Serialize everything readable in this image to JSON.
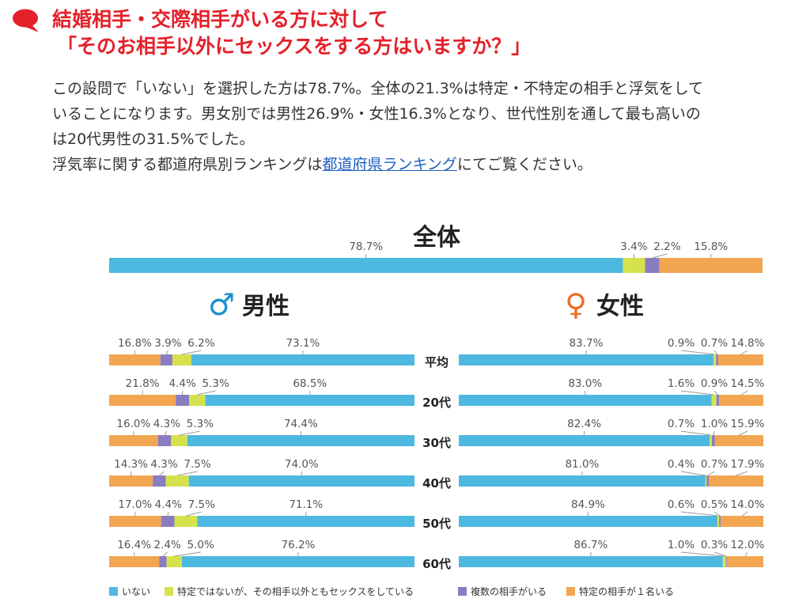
{
  "heading": {
    "line1": "結婚相手・交際相手がいる方に対して",
    "line2": "「そのお相手以外にセックスをする方はいますか？」"
  },
  "intro": {
    "line1": "この設問で「いない」を選択した方は78.7%。全体の21.3%は特定・不特定の相手と浮気をして",
    "line2": "いることになります。男女別では男性26.9%・女性16.3%となり、世代性別を通して最も高いの",
    "line3": "は20代男性の31.5%でした。",
    "line4_before": "浮気率に関する都道府県別ランキングは",
    "line4_link": "都道府県ランキング",
    "line4_after": "にてご覧ください。"
  },
  "colors": {
    "none": "#4db8e0",
    "unspecified": "#d6e24c",
    "multiple": "#8a7cc0",
    "specific": "#f2a652",
    "male": "#1a8fd0",
    "female": "#ec6d24",
    "heading": "#e4202a"
  },
  "chart_data": {
    "type": "bar",
    "stacked": true,
    "unit": "%",
    "categories_label": "全体",
    "legend": [
      {
        "key": "none",
        "label": "いない"
      },
      {
        "key": "unspecified",
        "label": "特定ではないが、その相手以外ともセックスをしている"
      },
      {
        "key": "multiple",
        "label": "複数の相手がいる"
      },
      {
        "key": "specific",
        "label": "特定の相手が１名いる"
      }
    ],
    "overall": {
      "title": "全体",
      "values": {
        "none": 78.7,
        "unspecified": 3.4,
        "multiple": 2.2,
        "specific": 15.8
      },
      "labels": {
        "none": "78.7%",
        "unspecified": "3.4%",
        "multiple": "2.2%",
        "specific": "15.8%"
      }
    },
    "male": {
      "symbol": "♂",
      "title": "男性",
      "rows": [
        {
          "values": {
            "none": 73.1,
            "unspecified": 6.2,
            "multiple": 3.9,
            "specific": 16.8
          },
          "labels": {
            "none": "73.1%",
            "unspecified": "6.2%",
            "multiple": "3.9%",
            "specific": "16.8%"
          }
        },
        {
          "values": {
            "none": 68.5,
            "unspecified": 5.3,
            "multiple": 4.4,
            "specific": 21.8
          },
          "labels": {
            "none": "68.5%",
            "unspecified": "5.3%",
            "multiple": "4.4%",
            "specific": "21.8%"
          }
        },
        {
          "values": {
            "none": 74.4,
            "unspecified": 5.3,
            "multiple": 4.3,
            "specific": 16.0
          },
          "labels": {
            "none": "74.4%",
            "unspecified": "5.3%",
            "multiple": "4.3%",
            "specific": "16.0%"
          }
        },
        {
          "values": {
            "none": 74.0,
            "unspecified": 7.5,
            "multiple": 4.3,
            "specific": 14.3
          },
          "labels": {
            "none": "74.0%",
            "unspecified": "7.5%",
            "multiple": "4.3%",
            "specific": "14.3%"
          }
        },
        {
          "values": {
            "none": 71.1,
            "unspecified": 7.5,
            "multiple": 4.4,
            "specific": 17.0
          },
          "labels": {
            "none": "71.1%",
            "unspecified": "7.5%",
            "multiple": "4.4%",
            "specific": "17.0%"
          }
        },
        {
          "values": {
            "none": 76.2,
            "unspecified": 5.0,
            "multiple": 2.4,
            "specific": 16.4
          },
          "labels": {
            "none": "76.2%",
            "unspecified": "5.0%",
            "multiple": "2.4%",
            "specific": "16.4%"
          }
        }
      ]
    },
    "female": {
      "symbol": "♀",
      "title": "女性",
      "rows": [
        {
          "values": {
            "none": 83.7,
            "unspecified": 0.9,
            "multiple": 0.7,
            "specific": 14.8
          },
          "labels": {
            "none": "83.7%",
            "unspecified": "0.9%",
            "multiple": "0.7%",
            "specific": "14.8%"
          }
        },
        {
          "values": {
            "none": 83.0,
            "unspecified": 1.6,
            "multiple": 0.9,
            "specific": 14.5
          },
          "labels": {
            "none": "83.0%",
            "unspecified": "1.6%",
            "multiple": "0.9%",
            "specific": "14.5%"
          }
        },
        {
          "values": {
            "none": 82.4,
            "unspecified": 0.7,
            "multiple": 1.0,
            "specific": 15.9
          },
          "labels": {
            "none": "82.4%",
            "unspecified": "0.7%",
            "multiple": "1.0%",
            "specific": "15.9%"
          }
        },
        {
          "values": {
            "none": 81.0,
            "unspecified": 0.4,
            "multiple": 0.7,
            "specific": 17.9
          },
          "labels": {
            "none": "81.0%",
            "unspecified": "0.4%",
            "multiple": "0.7%",
            "specific": "17.9%"
          }
        },
        {
          "values": {
            "none": 84.9,
            "unspecified": 0.6,
            "multiple": 0.5,
            "specific": 14.0
          },
          "labels": {
            "none": "84.9%",
            "unspecified": "0.6%",
            "multiple": "0.5%",
            "specific": "14.0%"
          }
        },
        {
          "values": {
            "none": 86.7,
            "unspecified": 1.0,
            "multiple": 0.3,
            "specific": 12.0
          },
          "labels": {
            "none": "86.7%",
            "unspecified": "1.0%",
            "multiple": "0.3%",
            "specific": "12.0%"
          }
        }
      ]
    },
    "row_categories": [
      "平均",
      "20代",
      "30代",
      "40代",
      "50代",
      "60代"
    ]
  }
}
